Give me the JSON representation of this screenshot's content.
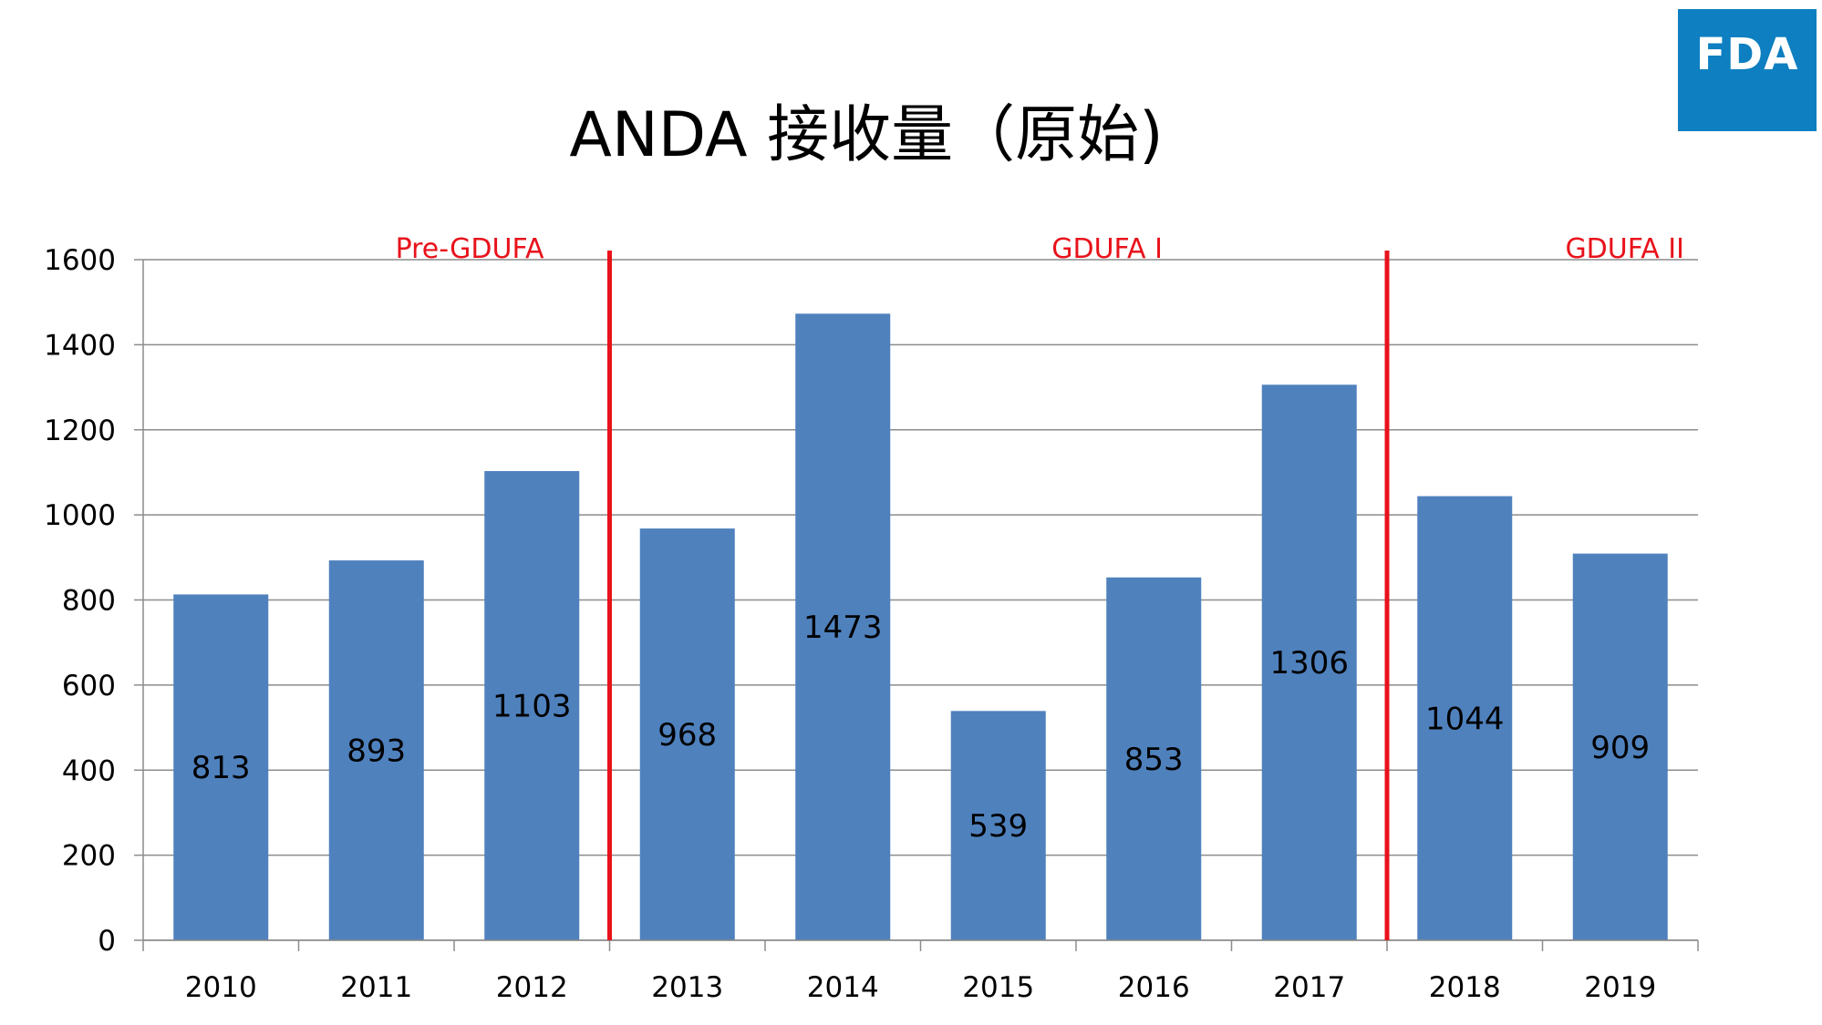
{
  "title": "ANDA 接收量（原始)",
  "logo": {
    "text": "FDA",
    "color": "#0e7fc0"
  },
  "colors": {
    "bar": "#4f81bd",
    "divider": "#e8121b",
    "grid": "#8c8c8c"
  },
  "chart_data": {
    "type": "bar",
    "categories": [
      "2010",
      "2011",
      "2012",
      "2013",
      "2014",
      "2015",
      "2016",
      "2017",
      "2018",
      "2019"
    ],
    "values": [
      813,
      893,
      1103,
      968,
      1473,
      539,
      853,
      1306,
      1044,
      909
    ],
    "data_labels": [
      "813",
      "893",
      "1103",
      "968",
      "1473",
      "539",
      "853",
      "1306",
      "1044",
      "909"
    ],
    "ylim": [
      0,
      1600
    ],
    "yticks": [
      "0",
      "200",
      "400",
      "600",
      "800",
      "1000",
      "1200",
      "1400",
      "1600"
    ],
    "grid": true,
    "legend": "none",
    "title": "",
    "xlabel": "",
    "ylabel": "",
    "eras": [
      {
        "label": "Pre-GDUFA",
        "from": "2010",
        "to": "2012"
      },
      {
        "label": "GDUFA I",
        "from": "2013",
        "to": "2017"
      },
      {
        "label": "GDUFA II",
        "from": "2018",
        "to": "2019"
      }
    ]
  }
}
